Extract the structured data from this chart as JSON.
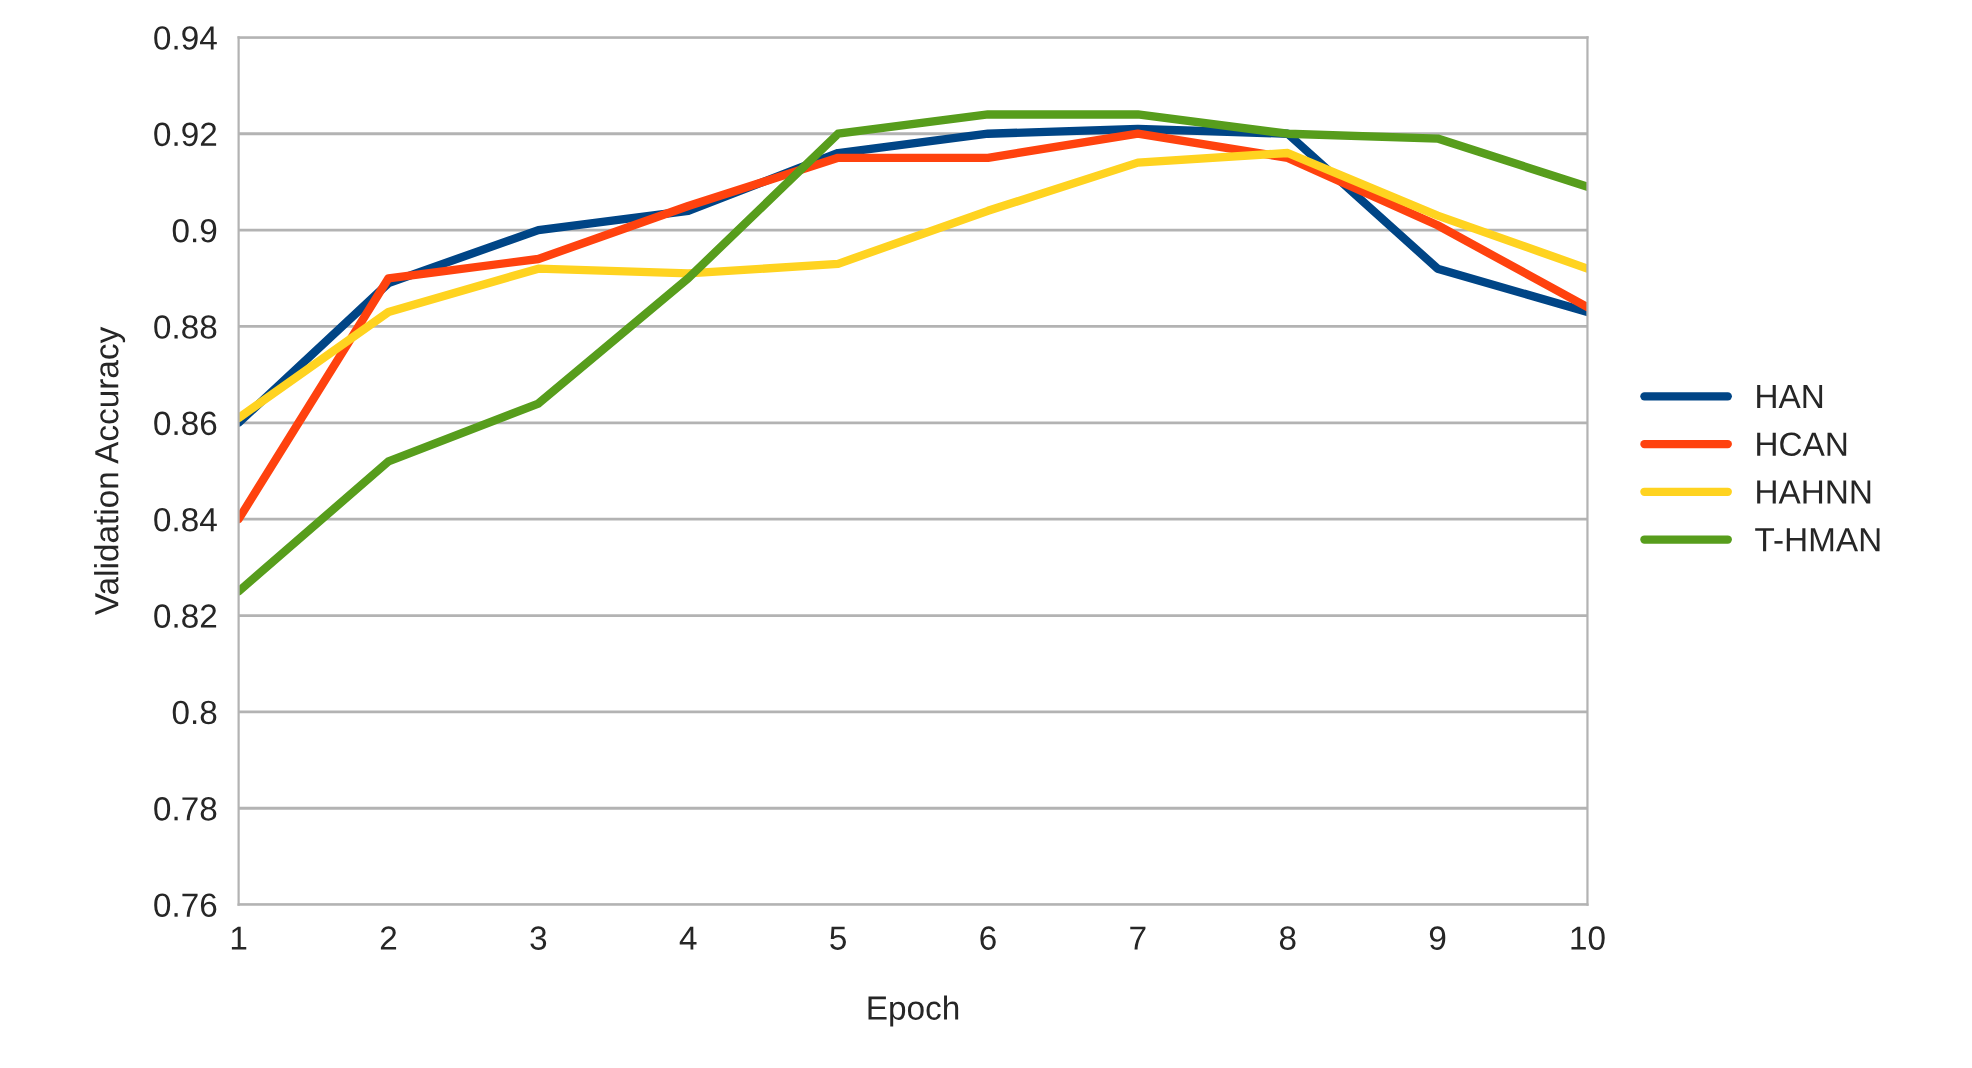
{
  "chart_data": {
    "type": "line",
    "xlabel": "Epoch",
    "ylabel": "Validation Accuracy",
    "x": [
      1,
      2,
      3,
      4,
      5,
      6,
      7,
      8,
      9,
      10
    ],
    "series": [
      {
        "name": "HAN",
        "color": "#004586",
        "values": [
          0.86,
          0.889,
          0.9,
          0.904,
          0.916,
          0.92,
          0.921,
          0.92,
          0.892,
          0.883
        ]
      },
      {
        "name": "HCAN",
        "color": "#ff420e",
        "values": [
          0.84,
          0.89,
          0.894,
          0.905,
          0.915,
          0.915,
          0.92,
          0.915,
          0.901,
          0.884
        ]
      },
      {
        "name": "HAHNN",
        "color": "#ffd320",
        "values": [
          0.861,
          0.883,
          0.892,
          0.891,
          0.893,
          0.904,
          0.914,
          0.916,
          0.903,
          0.892
        ]
      },
      {
        "name": "T-HMAN",
        "color": "#579d1c",
        "values": [
          0.825,
          0.852,
          0.864,
          0.89,
          0.92,
          0.924,
          0.924,
          0.92,
          0.919,
          0.909
        ]
      }
    ],
    "xlim": [
      1,
      10
    ],
    "xticks": [
      1,
      2,
      3,
      4,
      5,
      6,
      7,
      8,
      9,
      10
    ],
    "ylim": [
      0.76,
      0.94
    ],
    "yticks": [
      0.76,
      0.78,
      0.8,
      0.82,
      0.84,
      0.86,
      0.88,
      0.9,
      0.92,
      0.94
    ],
    "grid": "y",
    "legend": "right"
  }
}
